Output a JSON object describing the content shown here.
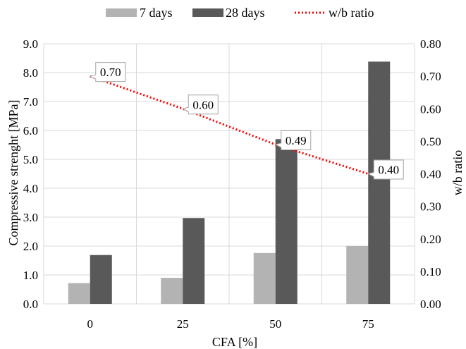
{
  "chart_data": {
    "type": "bar",
    "title": "",
    "xlabel": "CFA [%]",
    "ylabel": "Compressive strenght [MPa]",
    "y2label": "w/b ratio",
    "categories": [
      "0",
      "25",
      "50",
      "75"
    ],
    "ylim": [
      0,
      9
    ],
    "y2lim": [
      0,
      0.8
    ],
    "yticks": [
      "0.0",
      "1.0",
      "2.0",
      "3.0",
      "4.0",
      "5.0",
      "6.0",
      "7.0",
      "8.0",
      "9.0"
    ],
    "y2ticks": [
      "0.00",
      "0.10",
      "0.20",
      "0.30",
      "0.40",
      "0.50",
      "0.60",
      "0.70",
      "0.80"
    ],
    "grid": true,
    "legend_position": "top",
    "series": [
      {
        "name": "7 days",
        "type": "bar",
        "axis": "left",
        "color": "#b3b3b3",
        "values": [
          0.72,
          0.9,
          1.76,
          2.0
        ]
      },
      {
        "name": "28 days",
        "type": "bar",
        "axis": "left",
        "color": "#595959",
        "values": [
          1.69,
          2.97,
          5.7,
          8.38
        ]
      },
      {
        "name": "w/b ratio",
        "type": "line",
        "style": "dotted",
        "axis": "right",
        "color": "#ff0000",
        "values": [
          0.7,
          0.6,
          0.49,
          0.4
        ],
        "labels": [
          "0.70",
          "0.60",
          "0.49",
          "0.40"
        ]
      }
    ]
  }
}
